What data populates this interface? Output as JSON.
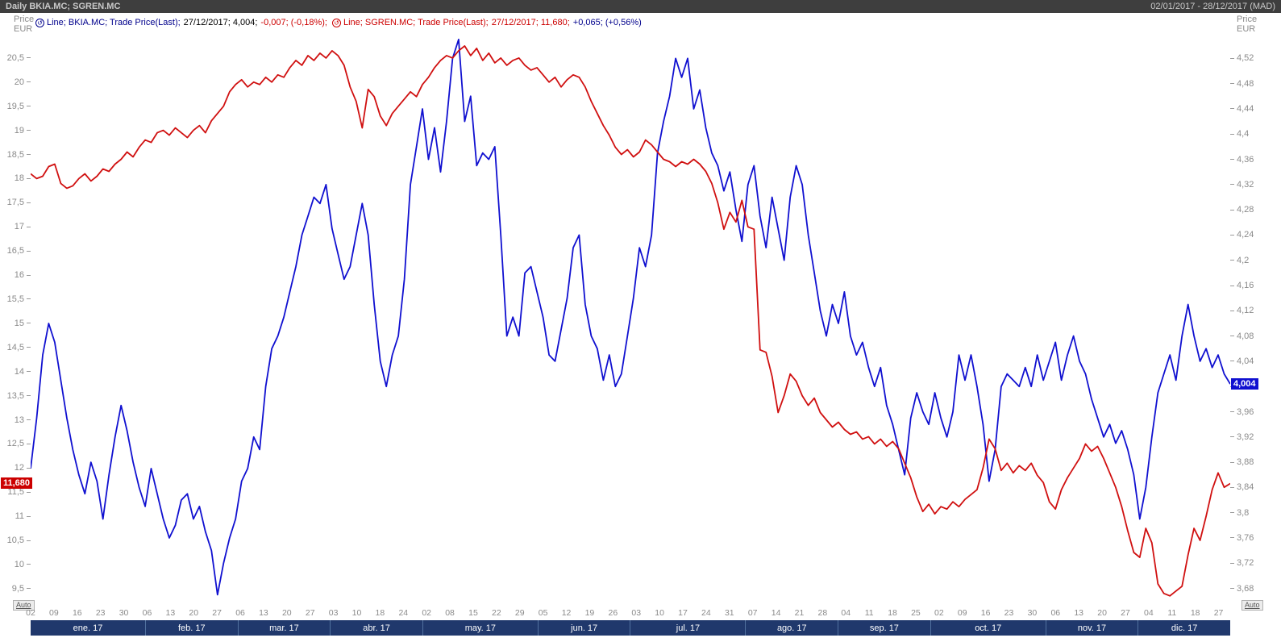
{
  "titlebar": {
    "title": "Daily BKIA.MC; SGREN.MC",
    "range": "02/01/2017 - 28/12/2017 (MAD)"
  },
  "legend": {
    "items": [
      {
        "icon": "↺",
        "label": "Line; BKIA.MC; Trade Price(Last);",
        "date_value": "27/12/2017; 4,004;",
        "change": "-0,007; (-0,18%);",
        "label_color": "#00008c",
        "value_color": "#000000",
        "change_color": "#cc0000"
      },
      {
        "icon": "↺",
        "label": "Line; SGREN.MC; Trade Price(Last);",
        "date_value": "27/12/2017; 11,680;",
        "change": "+0,065; (+0,56%)",
        "label_color": "#cc0000",
        "value_color": "#cc0000",
        "change_color": "#00008c"
      }
    ]
  },
  "axes": {
    "left": {
      "header_line1": "Price",
      "header_line2": "EUR",
      "ticks": [
        "20,5",
        "20",
        "19,5",
        "19",
        "18,5",
        "18",
        "17,5",
        "17",
        "16,5",
        "16",
        "15,5",
        "15",
        "14,5",
        "14",
        "13,5",
        "13",
        "12,5",
        "12",
        "11,5",
        "11",
        "10,5",
        "10",
        "9,5"
      ],
      "badge": "11,680",
      "badge_value": 11.68,
      "badge_color": "#cc0000",
      "auto_label": "Auto"
    },
    "right": {
      "header_line1": "Price",
      "header_line2": "EUR",
      "ticks": [
        "4,52",
        "4,48",
        "4,44",
        "4,4",
        "4,36",
        "4,32",
        "4,28",
        "4,24",
        "4,2",
        "4,16",
        "4,12",
        "4,08",
        "4,04",
        "4",
        "3,96",
        "3,92",
        "3,88",
        "3,84",
        "3,8",
        "3,76",
        "3,72",
        "3,68"
      ],
      "badge": "4,004",
      "badge_value": 4.004,
      "badge_color": "#1010d0",
      "auto_label": "Auto"
    },
    "x": {
      "week_labels": [
        "02",
        "09",
        "16",
        "23",
        "30",
        "06",
        "13",
        "20",
        "27",
        "06",
        "13",
        "20",
        "27",
        "03",
        "10",
        "18",
        "24",
        "02",
        "08",
        "15",
        "22",
        "29",
        "05",
        "12",
        "19",
        "26",
        "03",
        "10",
        "17",
        "24",
        "31",
        "07",
        "14",
        "21",
        "28",
        "04",
        "11",
        "18",
        "25",
        "02",
        "09",
        "16",
        "23",
        "30",
        "06",
        "13",
        "20",
        "27",
        "04",
        "11",
        "18",
        "27"
      ],
      "months": [
        {
          "label": "ene. 17",
          "weeks": 5
        },
        {
          "label": "feb. 17",
          "weeks": 4
        },
        {
          "label": "mar. 17",
          "weeks": 4
        },
        {
          "label": "abr. 17",
          "weeks": 4
        },
        {
          "label": "may. 17",
          "weeks": 5
        },
        {
          "label": "jun. 17",
          "weeks": 4
        },
        {
          "label": "jul. 17",
          "weeks": 5
        },
        {
          "label": "ago. 17",
          "weeks": 4
        },
        {
          "label": "sep. 17",
          "weeks": 4
        },
        {
          "label": "oct. 17",
          "weeks": 5
        },
        {
          "label": "nov. 17",
          "weeks": 4
        },
        {
          "label": "dic. 17",
          "weeks": 4
        }
      ]
    }
  },
  "chart_data": {
    "type": "line",
    "title": "Daily BKIA.MC; SGREN.MC",
    "x_range_label": "02/01/2017 - 28/12/2017 (MAD)",
    "grid": false,
    "left_axis": {
      "label": "Price EUR",
      "min": 9.23,
      "max": 20.95,
      "tick_step": 0.5
    },
    "right_axis": {
      "label": "Price EUR",
      "min": 3.659,
      "max": 4.555,
      "tick_step": 0.04
    },
    "series": [
      {
        "name": "BKIA.MC",
        "axis": "right",
        "color": "#1010d0",
        "last": 4.004,
        "change": -0.007,
        "change_pct": "-0.18%",
        "values": [
          3.87,
          3.95,
          4.05,
          4.1,
          4.07,
          4.01,
          3.95,
          3.9,
          3.86,
          3.83,
          3.88,
          3.85,
          3.79,
          3.86,
          3.92,
          3.97,
          3.93,
          3.88,
          3.84,
          3.81,
          3.87,
          3.83,
          3.79,
          3.76,
          3.78,
          3.82,
          3.83,
          3.79,
          3.81,
          3.77,
          3.74,
          3.67,
          3.72,
          3.76,
          3.79,
          3.85,
          3.87,
          3.92,
          3.9,
          4.0,
          4.06,
          4.08,
          4.11,
          4.15,
          4.19,
          4.24,
          4.27,
          4.3,
          4.29,
          4.32,
          4.25,
          4.21,
          4.17,
          4.19,
          4.24,
          4.29,
          4.24,
          4.13,
          4.04,
          4.0,
          4.05,
          4.08,
          4.17,
          4.32,
          4.38,
          4.44,
          4.36,
          4.41,
          4.34,
          4.42,
          4.52,
          4.55,
          4.42,
          4.46,
          4.35,
          4.37,
          4.36,
          4.38,
          4.24,
          4.08,
          4.11,
          4.08,
          4.18,
          4.19,
          4.15,
          4.11,
          4.05,
          4.04,
          4.09,
          4.14,
          4.22,
          4.24,
          4.13,
          4.08,
          4.06,
          4.01,
          4.05,
          4.0,
          4.02,
          4.08,
          4.14,
          4.22,
          4.19,
          4.24,
          4.37,
          4.42,
          4.46,
          4.52,
          4.49,
          4.52,
          4.44,
          4.47,
          4.41,
          4.37,
          4.35,
          4.31,
          4.34,
          4.28,
          4.23,
          4.32,
          4.35,
          4.27,
          4.22,
          4.3,
          4.25,
          4.2,
          4.3,
          4.35,
          4.32,
          4.24,
          4.18,
          4.12,
          4.08,
          4.13,
          4.1,
          4.15,
          4.08,
          4.05,
          4.07,
          4.03,
          4.0,
          4.03,
          3.97,
          3.94,
          3.9,
          3.86,
          3.95,
          3.99,
          3.96,
          3.94,
          3.99,
          3.95,
          3.92,
          3.96,
          4.05,
          4.01,
          4.05,
          4.0,
          3.94,
          3.85,
          3.9,
          4.0,
          4.02,
          4.01,
          4.0,
          4.03,
          4.0,
          4.05,
          4.01,
          4.04,
          4.07,
          4.01,
          4.05,
          4.08,
          4.04,
          4.02,
          3.98,
          3.95,
          3.92,
          3.94,
          3.91,
          3.93,
          3.9,
          3.86,
          3.79,
          3.84,
          3.92,
          3.99,
          4.02,
          4.05,
          4.01,
          4.08,
          4.13,
          4.08,
          4.04,
          4.06,
          4.03,
          4.05,
          4.02,
          4.004
        ]
      },
      {
        "name": "SGREN.MC",
        "axis": "left",
        "color": "#d01010",
        "last": 11.68,
        "change": 0.065,
        "change_pct": "+0.56%",
        "values": [
          18.1,
          18.0,
          18.05,
          18.25,
          18.3,
          17.9,
          17.8,
          17.85,
          18.0,
          18.1,
          17.95,
          18.05,
          18.2,
          18.15,
          18.3,
          18.4,
          18.55,
          18.45,
          18.65,
          18.8,
          18.75,
          18.95,
          19.0,
          18.9,
          19.05,
          18.95,
          18.85,
          19.0,
          19.1,
          18.95,
          19.2,
          19.35,
          19.5,
          19.8,
          19.95,
          20.05,
          19.9,
          20.0,
          19.95,
          20.1,
          20.0,
          20.15,
          20.1,
          20.3,
          20.45,
          20.35,
          20.55,
          20.45,
          20.6,
          20.5,
          20.65,
          20.55,
          20.35,
          19.9,
          19.6,
          19.05,
          19.85,
          19.7,
          19.3,
          19.1,
          19.35,
          19.5,
          19.65,
          19.8,
          19.7,
          19.95,
          20.1,
          20.3,
          20.45,
          20.55,
          20.5,
          20.65,
          20.75,
          20.55,
          20.7,
          20.45,
          20.6,
          20.4,
          20.5,
          20.35,
          20.45,
          20.5,
          20.35,
          20.25,
          20.3,
          20.15,
          20.0,
          20.1,
          19.9,
          20.05,
          20.15,
          20.1,
          19.9,
          19.6,
          19.35,
          19.1,
          18.9,
          18.65,
          18.5,
          18.6,
          18.45,
          18.55,
          18.8,
          18.7,
          18.55,
          18.4,
          18.35,
          18.25,
          18.35,
          18.3,
          18.4,
          18.3,
          18.15,
          17.9,
          17.5,
          16.95,
          17.3,
          17.1,
          17.55,
          17.0,
          16.95,
          14.45,
          14.4,
          13.9,
          13.15,
          13.5,
          13.95,
          13.8,
          13.5,
          13.3,
          13.45,
          13.15,
          13.0,
          12.85,
          12.95,
          12.8,
          12.7,
          12.75,
          12.6,
          12.65,
          12.5,
          12.6,
          12.45,
          12.55,
          12.4,
          12.1,
          11.8,
          11.4,
          11.1,
          11.25,
          11.05,
          11.2,
          11.15,
          11.3,
          11.2,
          11.35,
          11.45,
          11.55,
          12.0,
          12.6,
          12.4,
          11.95,
          12.1,
          11.9,
          12.05,
          11.95,
          12.1,
          11.85,
          11.7,
          11.3,
          11.15,
          11.55,
          11.8,
          12.0,
          12.2,
          12.5,
          12.35,
          12.45,
          12.2,
          11.9,
          11.6,
          11.2,
          10.7,
          10.25,
          10.15,
          10.75,
          10.45,
          9.6,
          9.4,
          9.35,
          9.45,
          9.55,
          10.2,
          10.75,
          10.5,
          11.0,
          11.55,
          11.9,
          11.6,
          11.68
        ]
      }
    ]
  }
}
